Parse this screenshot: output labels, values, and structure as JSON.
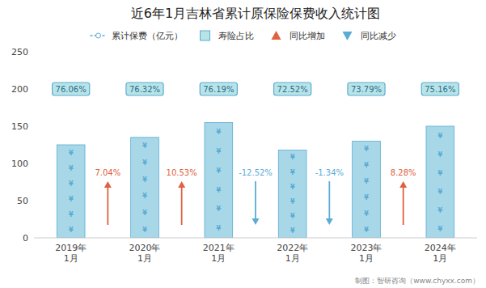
{
  "chart_data": {
    "type": "bar",
    "title": "近6年1月吉林省累计原保险保费收入统计图",
    "categories": [
      "2019年\n1月",
      "2020年\n1月",
      "2021年\n1月",
      "2022年\n1月",
      "2023年\n1月",
      "2024年\n1月"
    ],
    "series": [
      {
        "name": "累计保费（亿元）",
        "color": "#a8d8e8",
        "symbol": "¥",
        "values": [
          125,
          135,
          155,
          118,
          130,
          150
        ]
      }
    ],
    "share": {
      "name": "寿险占比",
      "color": "#b8e4e8",
      "values": [
        76.06,
        76.32,
        76.19,
        72.52,
        73.79,
        75.16
      ],
      "value_labels": [
        "76.06%",
        "76.32%",
        "76.19%",
        "72.52%",
        "73.79%",
        "75.16%"
      ]
    },
    "yoy": {
      "values": [
        7.04,
        10.53,
        -12.52,
        -1.34,
        8.28,
        null
      ],
      "value_labels": [
        "7.04%",
        "10.53%",
        "-12.52%",
        "-1.34%",
        "8.28%",
        null
      ],
      "up": {
        "name": "同比增加",
        "color": "#e06040"
      },
      "down": {
        "name": "同比减少",
        "color": "#5bacd4"
      }
    },
    "ylim": [
      0,
      250
    ],
    "yticks": [
      0,
      50,
      100,
      150,
      200,
      250
    ],
    "grid": false,
    "legend": "top",
    "footnote": "制图：智研咨询（www.chyxx.com）"
  }
}
